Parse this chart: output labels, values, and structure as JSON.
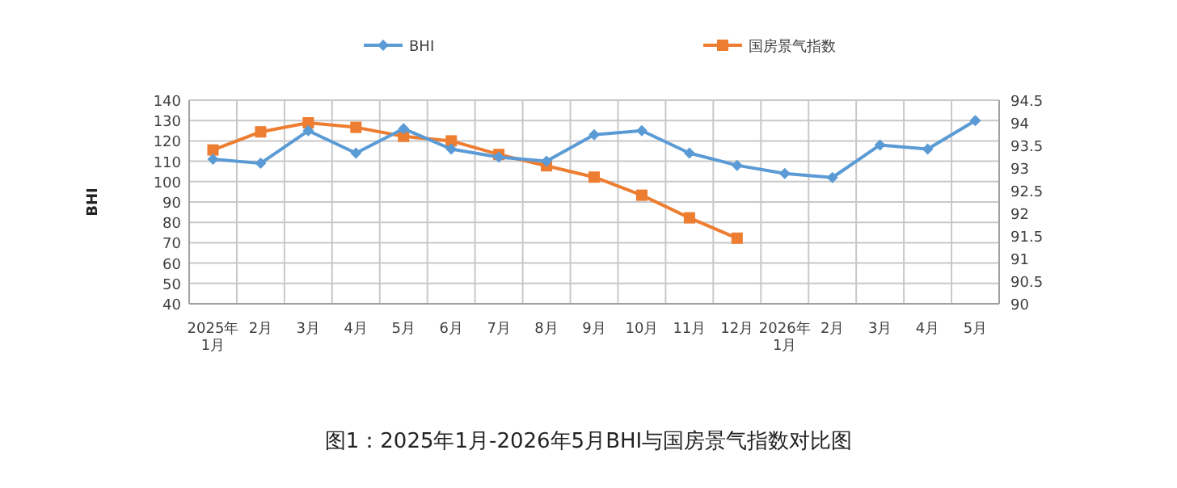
{
  "chart_data": {
    "type": "line",
    "categories": [
      "2025年\n1月",
      "2月",
      "3月",
      "4月",
      "5月",
      "6月",
      "7月",
      "8月",
      "9月",
      "10月",
      "11月",
      "12月",
      "2026年\n1月",
      "2月",
      "3月",
      "4月",
      "5月"
    ],
    "series": [
      {
        "name": "BHI",
        "color": "#5b9bd5",
        "marker": "diamond",
        "values": [
          111,
          109,
          125,
          114,
          126,
          116,
          112,
          110,
          123,
          125,
          114,
          108,
          104,
          102,
          118,
          116,
          130
        ]
      },
      {
        "name": "国房景气指数",
        "color": "#ed7d31",
        "marker": "square",
        "axis": "y2",
        "values": [
          93.4,
          93.8,
          94.0,
          93.9,
          93.7,
          93.6,
          93.3,
          93.05,
          92.8,
          92.4,
          91.9,
          91.45,
          null,
          null,
          null,
          null,
          null
        ]
      }
    ],
    "ylabel": "BHI",
    "ylim": [
      40,
      140
    ],
    "yticks": [
      40,
      50,
      60,
      70,
      80,
      90,
      100,
      110,
      120,
      130,
      140
    ],
    "y2lim": [
      90,
      94.5
    ],
    "y2ticks": [
      90,
      90.5,
      91,
      91.5,
      92,
      92.5,
      93,
      93.5,
      94,
      94.5
    ],
    "grid": true,
    "legend": "top",
    "line_style": "solid",
    "annotations": [
      "图1：2025年1月-2026年5月BHI与国房景气指数对比图"
    ]
  }
}
